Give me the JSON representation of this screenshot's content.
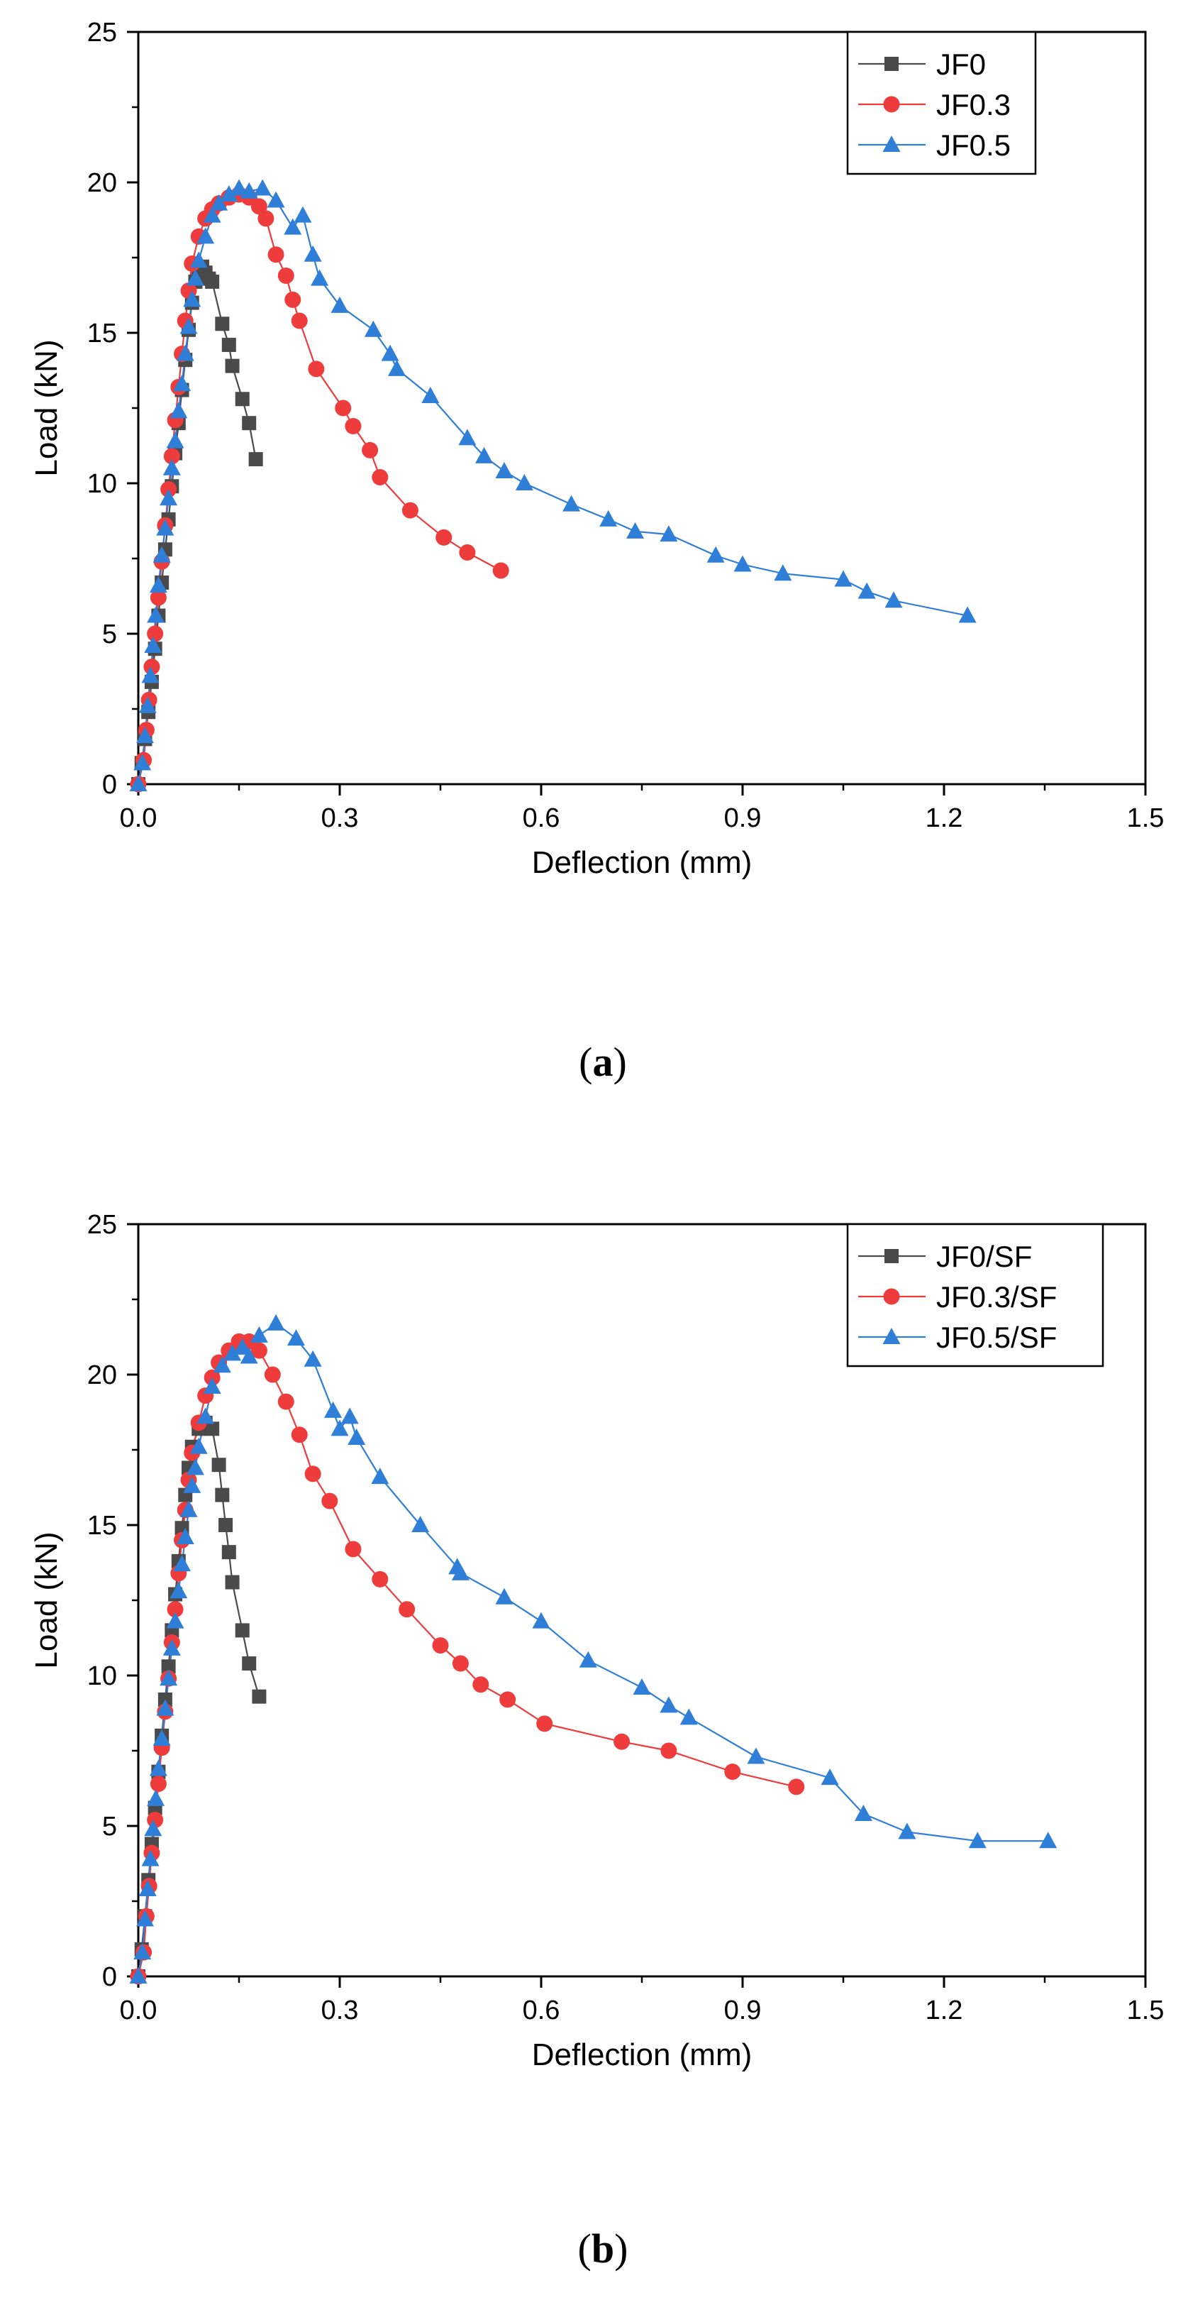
{
  "chart_data": [
    {
      "type": "line",
      "panel": "a",
      "caption_open": "(",
      "caption_letter": "a",
      "caption_close": ")",
      "title": "",
      "xlabel": "Deflection (mm)",
      "ylabel": "Load (kN)",
      "xlim": [
        0,
        1.5
      ],
      "ylim": [
        0,
        25
      ],
      "xticks": [
        "0.0",
        "0.3",
        "0.6",
        "0.9",
        "1.2",
        "1.5"
      ],
      "yticks": [
        "0",
        "5",
        "10",
        "15",
        "20",
        "25"
      ],
      "grid": false,
      "legend_position": "top-right",
      "series": [
        {
          "name": "JF0",
          "color": "#4a4a4a",
          "marker": "square",
          "x": [
            0.0,
            0.005,
            0.01,
            0.015,
            0.02,
            0.025,
            0.03,
            0.035,
            0.04,
            0.045,
            0.05,
            0.055,
            0.06,
            0.065,
            0.07,
            0.075,
            0.08,
            0.085,
            0.09,
            0.095,
            0.1,
            0.105,
            0.11,
            0.125,
            0.135,
            0.14,
            0.155,
            0.165,
            0.175
          ],
          "y": [
            0.0,
            0.7,
            1.5,
            2.4,
            3.4,
            4.5,
            5.6,
            6.7,
            7.8,
            8.8,
            9.9,
            11.0,
            12.0,
            13.1,
            14.1,
            15.1,
            16.0,
            16.7,
            17.0,
            17.2,
            17.0,
            16.8,
            16.7,
            15.3,
            14.6,
            13.9,
            12.8,
            12.0,
            10.8
          ]
        },
        {
          "name": "JF0.3",
          "color": "#ee3b3b",
          "marker": "circle",
          "x": [
            0.0,
            0.008,
            0.012,
            0.016,
            0.02,
            0.025,
            0.03,
            0.035,
            0.04,
            0.045,
            0.05,
            0.055,
            0.06,
            0.065,
            0.07,
            0.075,
            0.08,
            0.09,
            0.1,
            0.11,
            0.12,
            0.135,
            0.15,
            0.165,
            0.18,
            0.19,
            0.205,
            0.22,
            0.23,
            0.24,
            0.265,
            0.305,
            0.32,
            0.345,
            0.36,
            0.405,
            0.455,
            0.49,
            0.54
          ],
          "y": [
            0.0,
            0.8,
            1.8,
            2.8,
            3.9,
            5.0,
            6.2,
            7.4,
            8.6,
            9.8,
            10.9,
            12.1,
            13.2,
            14.3,
            15.4,
            16.4,
            17.3,
            18.2,
            18.8,
            19.1,
            19.3,
            19.5,
            19.6,
            19.5,
            19.2,
            18.8,
            17.6,
            16.9,
            16.1,
            15.4,
            13.8,
            12.5,
            11.9,
            11.1,
            10.2,
            9.1,
            8.2,
            7.7,
            7.1
          ]
        },
        {
          "name": "JF0.5",
          "color": "#2f7ed8",
          "marker": "triangle",
          "x": [
            0.0,
            0.006,
            0.01,
            0.014,
            0.018,
            0.022,
            0.026,
            0.03,
            0.035,
            0.04,
            0.045,
            0.05,
            0.055,
            0.06,
            0.065,
            0.07,
            0.075,
            0.08,
            0.085,
            0.09,
            0.1,
            0.11,
            0.12,
            0.135,
            0.15,
            0.165,
            0.185,
            0.205,
            0.23,
            0.245,
            0.26,
            0.27,
            0.3,
            0.35,
            0.375,
            0.385,
            0.435,
            0.49,
            0.515,
            0.545,
            0.575,
            0.645,
            0.7,
            0.74,
            0.79,
            0.86,
            0.9,
            0.96,
            1.05,
            1.085,
            1.125,
            1.235
          ],
          "y": [
            0.0,
            0.7,
            1.6,
            2.6,
            3.6,
            4.6,
            5.6,
            6.6,
            7.6,
            8.5,
            9.5,
            10.5,
            11.4,
            12.4,
            13.3,
            14.3,
            15.2,
            16.1,
            16.8,
            17.4,
            18.2,
            18.9,
            19.3,
            19.6,
            19.8,
            19.7,
            19.8,
            19.4,
            18.5,
            18.9,
            17.6,
            16.8,
            15.9,
            15.1,
            14.3,
            13.8,
            12.9,
            11.5,
            10.9,
            10.4,
            10.0,
            9.3,
            8.8,
            8.4,
            8.3,
            7.6,
            7.3,
            7.0,
            6.8,
            6.4,
            6.1,
            5.6
          ]
        }
      ]
    },
    {
      "type": "line",
      "panel": "b",
      "caption_open": "(",
      "caption_letter": "b",
      "caption_close": ")",
      "title": "",
      "xlabel": "Deflection (mm)",
      "ylabel": "Load (kN)",
      "xlim": [
        0,
        1.5
      ],
      "ylim": [
        0,
        25
      ],
      "xticks": [
        "0.0",
        "0.3",
        "0.6",
        "0.9",
        "1.2",
        "1.5"
      ],
      "yticks": [
        "0",
        "5",
        "10",
        "15",
        "20",
        "25"
      ],
      "grid": false,
      "legend_position": "top-right",
      "series": [
        {
          "name": "JF0/SF",
          "color": "#4a4a4a",
          "marker": "square",
          "x": [
            0.0,
            0.005,
            0.01,
            0.015,
            0.02,
            0.025,
            0.03,
            0.035,
            0.04,
            0.045,
            0.05,
            0.055,
            0.06,
            0.065,
            0.07,
            0.075,
            0.08,
            0.09,
            0.1,
            0.11,
            0.12,
            0.125,
            0.13,
            0.135,
            0.14,
            0.155,
            0.165,
            0.18
          ],
          "y": [
            0.0,
            0.9,
            2.0,
            3.2,
            4.4,
            5.6,
            6.8,
            8.0,
            9.2,
            10.3,
            11.5,
            12.7,
            13.8,
            14.9,
            16.0,
            16.9,
            17.6,
            18.2,
            18.4,
            18.2,
            17.0,
            16.0,
            15.0,
            14.1,
            13.1,
            11.5,
            10.4,
            9.3
          ]
        },
        {
          "name": "JF0.3/SF",
          "color": "#ee3b3b",
          "marker": "circle",
          "x": [
            0.0,
            0.008,
            0.012,
            0.016,
            0.02,
            0.025,
            0.03,
            0.035,
            0.04,
            0.045,
            0.05,
            0.055,
            0.06,
            0.065,
            0.07,
            0.075,
            0.08,
            0.09,
            0.1,
            0.11,
            0.12,
            0.135,
            0.15,
            0.165,
            0.18,
            0.2,
            0.22,
            0.24,
            0.26,
            0.285,
            0.32,
            0.36,
            0.4,
            0.45,
            0.48,
            0.51,
            0.55,
            0.605,
            0.72,
            0.79,
            0.885,
            0.98
          ],
          "y": [
            0.0,
            0.8,
            2.0,
            3.0,
            4.1,
            5.2,
            6.4,
            7.6,
            8.8,
            9.9,
            11.1,
            12.2,
            13.4,
            14.5,
            15.5,
            16.5,
            17.4,
            18.4,
            19.3,
            19.9,
            20.4,
            20.8,
            21.1,
            21.1,
            20.8,
            20.0,
            19.1,
            18.0,
            16.7,
            15.8,
            14.2,
            13.2,
            12.2,
            11.0,
            10.4,
            9.7,
            9.2,
            8.4,
            7.8,
            7.5,
            6.8,
            6.3
          ]
        },
        {
          "name": "JF0.5/SF",
          "color": "#2f7ed8",
          "marker": "triangle",
          "x": [
            0.0,
            0.006,
            0.01,
            0.014,
            0.018,
            0.022,
            0.026,
            0.03,
            0.035,
            0.04,
            0.045,
            0.05,
            0.055,
            0.06,
            0.065,
            0.07,
            0.075,
            0.08,
            0.085,
            0.09,
            0.1,
            0.11,
            0.125,
            0.14,
            0.155,
            0.165,
            0.18,
            0.205,
            0.235,
            0.26,
            0.29,
            0.3,
            0.315,
            0.325,
            0.36,
            0.42,
            0.475,
            0.48,
            0.545,
            0.6,
            0.67,
            0.75,
            0.79,
            0.82,
            0.92,
            1.03,
            1.08,
            1.145,
            1.25,
            1.355
          ],
          "y": [
            0.0,
            0.8,
            1.9,
            2.9,
            3.9,
            4.9,
            5.9,
            6.9,
            7.9,
            8.9,
            9.9,
            10.9,
            11.8,
            12.8,
            13.7,
            14.6,
            15.5,
            16.3,
            16.9,
            17.6,
            18.6,
            19.6,
            20.3,
            20.7,
            20.9,
            20.6,
            21.3,
            21.7,
            21.2,
            20.5,
            18.8,
            18.2,
            18.6,
            17.9,
            16.6,
            15.0,
            13.6,
            13.4,
            12.6,
            11.8,
            10.5,
            9.6,
            9.0,
            8.6,
            7.3,
            6.6,
            5.4,
            4.8,
            4.5,
            4.5
          ]
        }
      ]
    }
  ]
}
